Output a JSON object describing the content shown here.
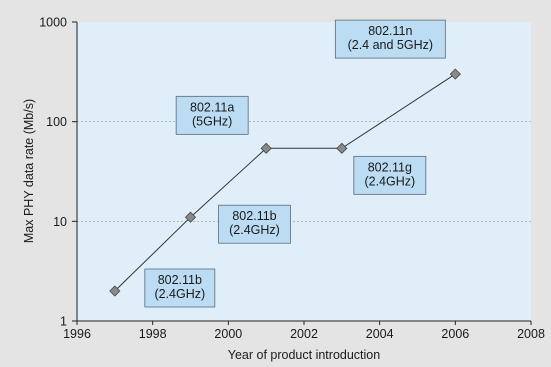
{
  "chart_data": {
    "type": "line",
    "title": "",
    "xlabel": "Year of product introduction",
    "ylabel": "Max PHY data rate (Mb/s)",
    "xlim": [
      1996,
      2008
    ],
    "ylim": [
      1,
      1000
    ],
    "yscale": "log",
    "grid": "horizontal-dashed",
    "x_ticks": [
      1996,
      1998,
      2000,
      2002,
      2004,
      2006,
      2008
    ],
    "y_ticks": [
      1,
      10,
      100,
      1000
    ],
    "x_tick_labels": [
      "1996",
      "1998",
      "2000",
      "2002",
      "2004",
      "2006",
      "2008"
    ],
    "y_tick_labels": [
      "1",
      "10",
      "100",
      "1000"
    ],
    "series": [
      {
        "x": [
          1997,
          1999,
          2001,
          2003,
          2006
        ],
        "y": [
          2,
          11,
          54,
          54,
          300
        ]
      }
    ],
    "annotations": [
      {
        "lines": [
          "802.11b",
          "(2.4GHz)"
        ],
        "x": 1997,
        "y": 2
      },
      {
        "lines": [
          "802.11b",
          "(2.4GHz)"
        ],
        "x": 1999,
        "y": 11
      },
      {
        "lines": [
          "802.11a",
          "(5GHz)"
        ],
        "x": 2001,
        "y": 54
      },
      {
        "lines": [
          "802.11g",
          "(2.4GHz)"
        ],
        "x": 2003,
        "y": 54
      },
      {
        "lines": [
          "802.11n",
          "(2.4 and 5GHz)"
        ],
        "x": 2006,
        "y": 300
      }
    ],
    "colors": {
      "plot_background": "#dfeef8",
      "figure_background": "#e4e4e4",
      "label_box": "#bcdcf3",
      "line": "#333333",
      "marker": "#8a8a8a",
      "grid": "#9a9a9a"
    }
  }
}
